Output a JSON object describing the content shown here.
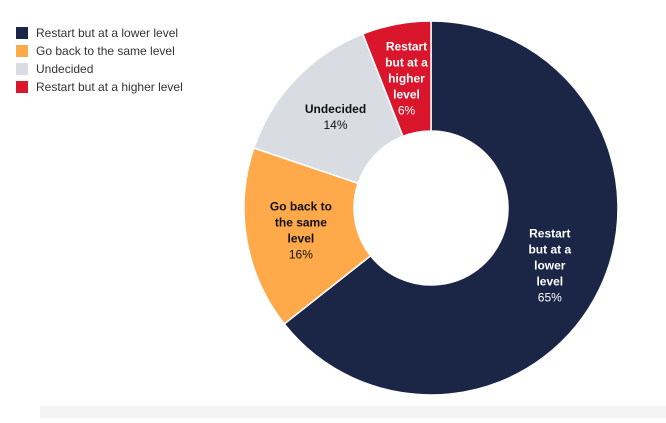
{
  "chart_data": {
    "type": "pie",
    "donut": true,
    "title": "",
    "categories": [
      "Restart but at a lower level",
      "Go back to the same level",
      "Undecided",
      "Restart but at a higher level"
    ],
    "values": [
      65,
      16,
      14,
      6
    ],
    "value_labels": [
      "65%",
      "16%",
      "14%",
      "6%"
    ],
    "slice_labels": [
      [
        "Restart",
        "but at a",
        "lower",
        "level"
      ],
      [
        "Go back to",
        "the same",
        "level"
      ],
      [
        "Undecided"
      ],
      [
        "Restart",
        "but at a",
        "higher",
        "level"
      ]
    ],
    "colors": [
      "#1b2647",
      "#ffa94a",
      "#d9dde3",
      "#d9162c"
    ],
    "label_colors": [
      "#ffffff",
      "#111111",
      "#111111",
      "#ffffff"
    ],
    "legend_position": "top-left",
    "start_angle": "top",
    "direction": "clockwise"
  }
}
